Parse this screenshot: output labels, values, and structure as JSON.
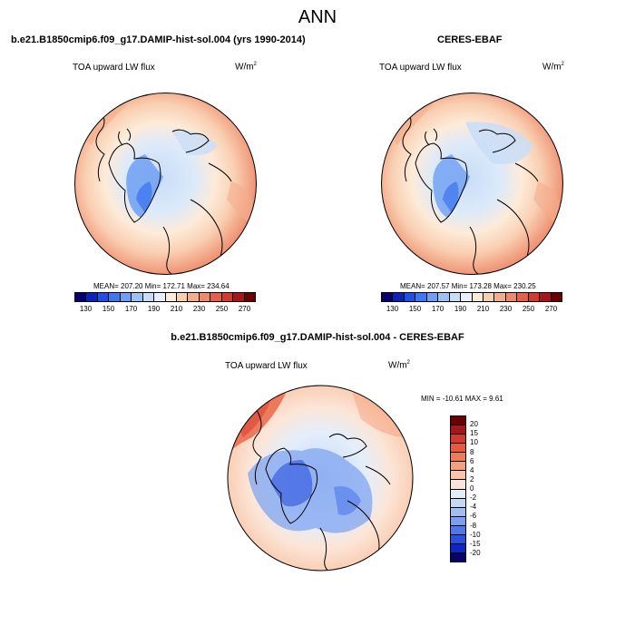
{
  "title": "ANN",
  "panels": [
    {
      "title": "b.e21.B1850cmip6.f09_g17.DAMIP-hist-sol.004 (yrs 1990-2014)",
      "variable": "TOA upward LW flux",
      "units": "W/m",
      "units_sup": "2",
      "stats": "MEAN= 207.20  Min= 172.71  Max= 234.64",
      "colorbar_labels": [
        "130",
        "150",
        "170",
        "190",
        "210",
        "230",
        "250",
        "270"
      ]
    },
    {
      "title": "CERES-EBAF",
      "variable": "TOA upward LW flux",
      "units": "W/m",
      "units_sup": "2",
      "stats": "MEAN= 207.57  Min= 173.28  Max= 230.25",
      "colorbar_labels": [
        "130",
        "150",
        "170",
        "190",
        "210",
        "230",
        "250",
        "270"
      ]
    },
    {
      "title": "b.e21.B1850cmip6.f09_g17.DAMIP-hist-sol.004 - CERES-EBAF",
      "variable": "TOA upward LW flux",
      "units": "W/m",
      "units_sup": "2",
      "stats": "MIN = -10.61  MAX =   9.61",
      "colorbar_labels": [
        "20",
        "15",
        "10",
        "8",
        "6",
        "4",
        "2",
        "0",
        "-2",
        "-4",
        "-6",
        "-8",
        "-10",
        "-15",
        "-20"
      ]
    }
  ],
  "colors": {
    "abs_scale": [
      "#08006b",
      "#0b23b8",
      "#1f4fe6",
      "#3f78ee",
      "#6e9ff2",
      "#9dc0f5",
      "#c9ddf8",
      "#e6effb",
      "#fdebd9",
      "#f9cfb2",
      "#f4ae8c",
      "#ee8a6a",
      "#e5604a",
      "#d13a2c",
      "#a8161a",
      "#6b0000"
    ],
    "diff_scale": [
      "#6b0000",
      "#a8161a",
      "#d13a2c",
      "#e85a3b",
      "#f07b57",
      "#f5a07c",
      "#f9c5a9",
      "#fce5d6",
      "#e4eefb",
      "#c4d8f6",
      "#9fbff3",
      "#799ff0",
      "#4e78ea",
      "#2950de",
      "#0b27c4",
      "#08006b"
    ]
  }
}
